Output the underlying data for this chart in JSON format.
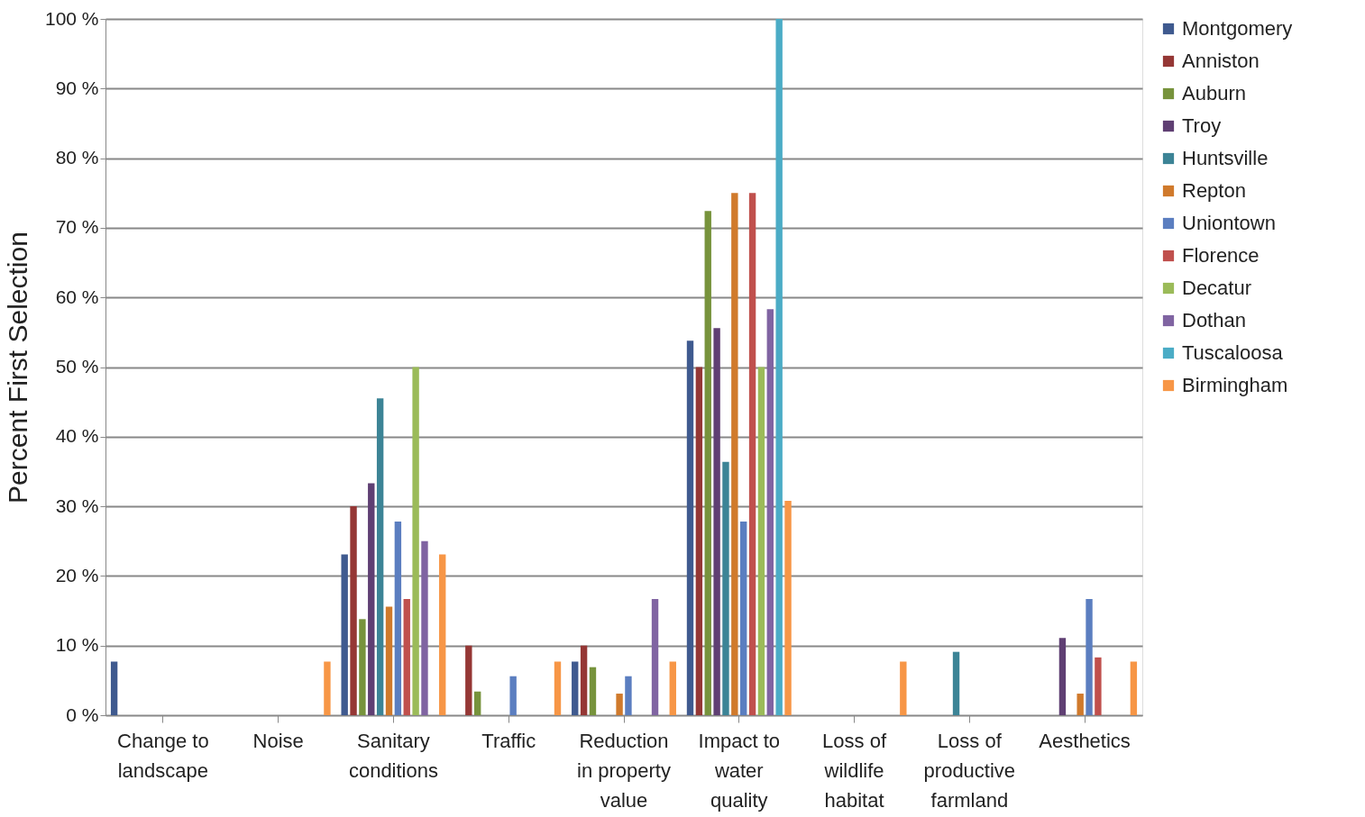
{
  "chart_data": {
    "type": "bar",
    "ylabel": "Percent First Selection",
    "categories": [
      "Change to landscape",
      "Noise",
      "Sanitary conditions",
      "Traffic",
      "Reduction in property value",
      "Impact to water quality",
      "Loss of wildlife habitat",
      "Loss of productive farmland",
      "Aesthetics"
    ],
    "ylim": [
      0,
      100
    ],
    "yticks": [
      {
        "value": 0,
        "label": "0 %"
      },
      {
        "value": 10,
        "label": "10 %"
      },
      {
        "value": 20,
        "label": "20 %"
      },
      {
        "value": 30,
        "label": "30 %"
      },
      {
        "value": 40,
        "label": "40 %"
      },
      {
        "value": 50,
        "label": "50 %"
      },
      {
        "value": 60,
        "label": "60 %"
      },
      {
        "value": 70,
        "label": "70 %"
      },
      {
        "value": 80,
        "label": "80 %"
      },
      {
        "value": 90,
        "label": "90 %"
      },
      {
        "value": 100,
        "label": "100 %"
      }
    ],
    "grid": "y",
    "legend": "right",
    "series": [
      {
        "name": "Montgomery",
        "color": "#3f5a8f",
        "values": [
          7.7,
          null,
          23.1,
          null,
          7.7,
          53.8,
          null,
          null,
          null
        ]
      },
      {
        "name": "Anniston",
        "color": "#953735",
        "values": [
          null,
          null,
          30,
          10,
          10,
          50,
          null,
          null,
          null
        ]
      },
      {
        "name": "Auburn",
        "color": "#77933c",
        "values": [
          null,
          null,
          13.8,
          3.4,
          6.9,
          72.4,
          null,
          null,
          null
        ]
      },
      {
        "name": "Troy",
        "color": "#5f3f73",
        "values": [
          null,
          null,
          33.3,
          null,
          null,
          55.6,
          null,
          null,
          11.1
        ]
      },
      {
        "name": "Huntsville",
        "color": "#3c8496",
        "values": [
          null,
          null,
          45.5,
          null,
          null,
          36.4,
          null,
          9.1,
          null
        ]
      },
      {
        "name": "Repton",
        "color": "#d07a2c",
        "values": [
          null,
          null,
          15.6,
          null,
          3.1,
          75,
          null,
          null,
          3.1
        ]
      },
      {
        "name": "Uniontown",
        "color": "#5b7ec0",
        "values": [
          null,
          null,
          27.8,
          5.6,
          5.6,
          27.8,
          null,
          null,
          16.7
        ]
      },
      {
        "name": "Florence",
        "color": "#c0504d",
        "values": [
          null,
          null,
          16.7,
          null,
          null,
          75,
          null,
          null,
          8.3
        ]
      },
      {
        "name": "Decatur",
        "color": "#9bbb59",
        "values": [
          null,
          null,
          50,
          null,
          null,
          50,
          null,
          null,
          null
        ]
      },
      {
        "name": "Dothan",
        "color": "#8064a2",
        "values": [
          null,
          null,
          25,
          null,
          16.7,
          58.3,
          null,
          null,
          null
        ]
      },
      {
        "name": "Tuscaloosa",
        "color": "#4bacc6",
        "values": [
          null,
          null,
          null,
          null,
          null,
          100,
          null,
          null,
          null
        ]
      },
      {
        "name": "Birmingham",
        "color": "#f79646",
        "values": [
          null,
          7.7,
          23.1,
          7.7,
          7.7,
          30.8,
          7.7,
          null,
          7.7
        ]
      }
    ]
  }
}
